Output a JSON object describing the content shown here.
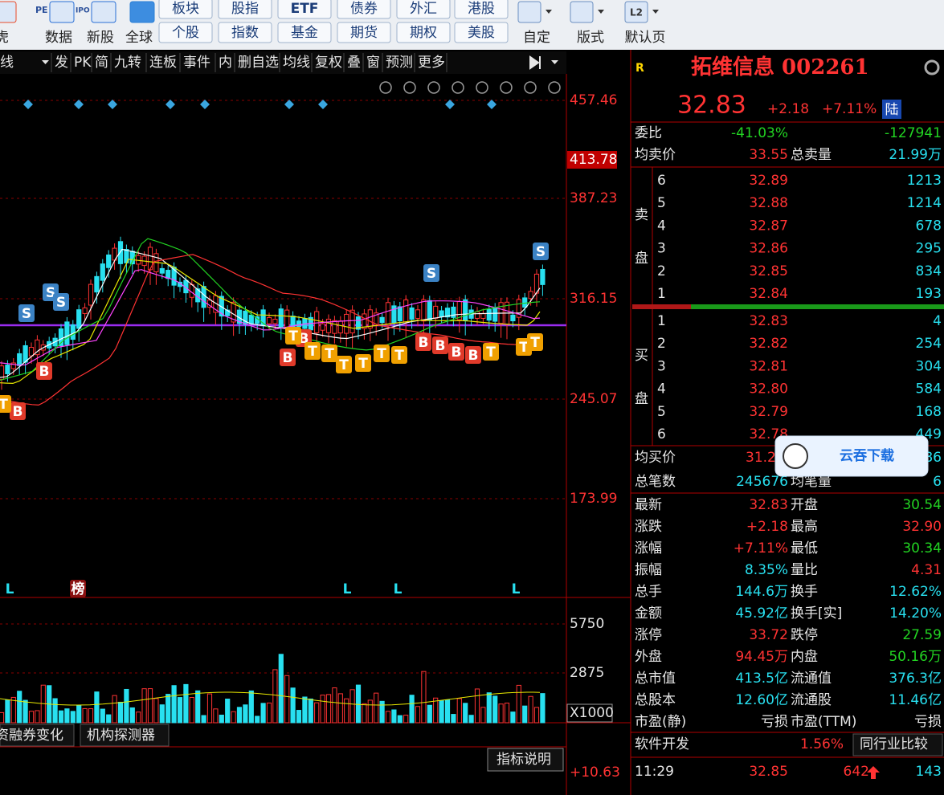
{
  "toolbar": {
    "icon_labels": [
      "虎",
      "数据",
      "新股",
      "全球"
    ],
    "buttons_row1": [
      "板块",
      "股指",
      "ETF",
      "债券",
      "外汇",
      "港股"
    ],
    "buttons_row2": [
      "个股",
      "指数",
      "基金",
      "期货",
      "期权",
      "美股"
    ],
    "right_labels": [
      "自定",
      "版式",
      "默认页"
    ],
    "icon_badges": [
      "PE",
      "IPO",
      "L2"
    ]
  },
  "chart_menu": [
    "线",
    "发",
    "PK",
    "简",
    "九转",
    "连板",
    "事件",
    "内",
    "删自选",
    "均线",
    "复权",
    "叠",
    "窗",
    "预测",
    "更多"
  ],
  "price_axis": [
    "457.46",
    "413.78",
    "387.23",
    "316.15",
    "245.07",
    "173.99"
  ],
  "volume_axis": [
    "5750",
    "2875",
    "X1000"
  ],
  "signals": [
    "S",
    "S",
    "S",
    "S",
    "S",
    "B",
    "B",
    "B",
    "B",
    "B",
    "B",
    "B",
    "B",
    "T",
    "T",
    "T",
    "T",
    "T",
    "T",
    "T",
    "T",
    "T",
    "T",
    "T",
    "L",
    "L",
    "L",
    "L",
    "榜"
  ],
  "bottom_tabs": [
    "资融券变化",
    "机构探测器"
  ],
  "indicator_button": "指标说明",
  "indicator_value": "+10.63",
  "quote": {
    "market": "R",
    "title": "拓维信息 002261",
    "price": "32.83",
    "change": "+2.18",
    "pct": "+7.11%",
    "exchange": "陆"
  },
  "ratio": {
    "label": "委比",
    "pct": "-41.03%",
    "diff": "-127941"
  },
  "avg_sell": {
    "label": "均卖价",
    "value": "33.55",
    "label2": "总卖量",
    "value2": "21.99万"
  },
  "sell_label": [
    "卖",
    "盘"
  ],
  "buy_label": [
    "买",
    "盘"
  ],
  "sell": [
    [
      "6",
      "32.89",
      "1213"
    ],
    [
      "5",
      "32.88",
      "1214"
    ],
    [
      "4",
      "32.87",
      "678"
    ],
    [
      "3",
      "32.86",
      "295"
    ],
    [
      "2",
      "32.85",
      "834"
    ],
    [
      "1",
      "32.84",
      "193"
    ]
  ],
  "buy": [
    [
      "1",
      "32.83",
      "4"
    ],
    [
      "2",
      "32.82",
      "254"
    ],
    [
      "3",
      "32.81",
      "304"
    ],
    [
      "4",
      "32.80",
      "584"
    ],
    [
      "5",
      "32.79",
      "168"
    ],
    [
      "6",
      "32.78",
      "449"
    ]
  ],
  "avg_buy": {
    "label": "均买价",
    "value": "31.2",
    "value2": "86"
  },
  "trades": {
    "label": "总笔数",
    "value": "245676",
    "label2": "均笔量",
    "value2": "6"
  },
  "popup": "云吞下载",
  "stats": [
    [
      "最新",
      "32.83",
      "开盘",
      "30.54"
    ],
    [
      "涨跌",
      "+2.18",
      "最高",
      "32.90"
    ],
    [
      "涨幅",
      "+7.11%",
      "最低",
      "30.34"
    ],
    [
      "振幅",
      "8.35%",
      "量比",
      "4.31"
    ],
    [
      "总手",
      "144.6万",
      "换手",
      "12.62%"
    ],
    [
      "金额",
      "45.92亿",
      "换手[实]",
      "14.20%"
    ],
    [
      "涨停",
      "33.72",
      "跌停",
      "27.59"
    ],
    [
      "外盘",
      "94.45万",
      "内盘",
      "50.16万"
    ],
    [
      "总市值",
      "413.5亿",
      "流通值",
      "376.3亿"
    ],
    [
      "总股本",
      "12.60亿",
      "流通股",
      "11.46亿"
    ],
    [
      "市盈(静)",
      "亏损",
      "市盈(TTM)",
      "亏损"
    ]
  ],
  "industry": {
    "name": "软件开发",
    "pct": "1.56%",
    "compare": "同行业比较"
  },
  "tick": {
    "time": "11:29",
    "price": "32.85",
    "volume": "642",
    "count": "143"
  }
}
